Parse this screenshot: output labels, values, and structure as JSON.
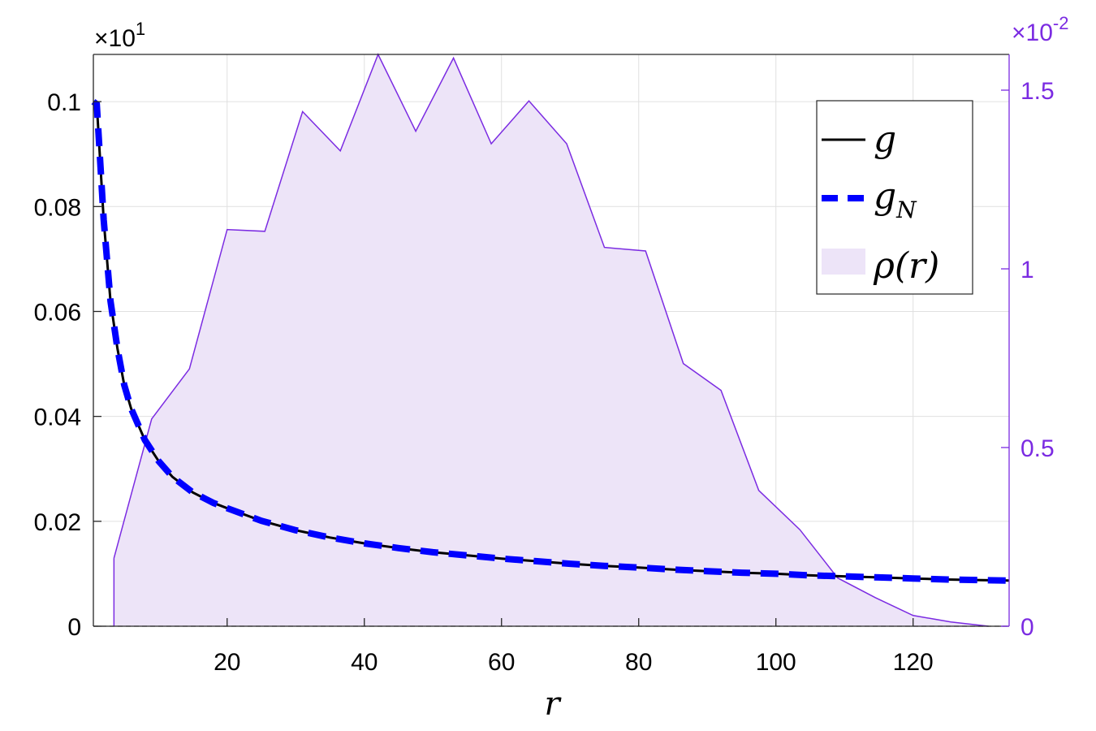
{
  "chart_data": {
    "type": "line",
    "xlabel": "r",
    "ylabel": "",
    "ylabel_right": "",
    "xlim": [
      0.5,
      134
    ],
    "ylim_left": [
      0,
      0.109
    ],
    "ylim_right": [
      0,
      1.6
    ],
    "left_axis_multiplier": "×10",
    "left_axis_exponent": "1",
    "right_axis_multiplier": "×10",
    "right_axis_exponent": "-2",
    "x_ticks": [
      20,
      40,
      60,
      80,
      100,
      120
    ],
    "x_tick_labels": [
      "20",
      "40",
      "60",
      "80",
      "100",
      "120"
    ],
    "y_ticks_left": [
      0,
      0.02,
      0.04,
      0.06,
      0.08,
      0.1
    ],
    "y_tick_labels_left": [
      "0",
      "0.02",
      "0.04",
      "0.06",
      "0.08",
      "0.1"
    ],
    "y_ticks_right": [
      0,
      0.5,
      1,
      1.5
    ],
    "y_tick_labels_right": [
      "0",
      "0.5",
      "1",
      "1.5"
    ],
    "grid": true,
    "legend_position": "top-right",
    "colors": {
      "g": "#000000",
      "gN": "#0000ff",
      "rho_line": "#7b2be2",
      "rho_fill": "#ede4f8",
      "right_axis": "#7b2be2",
      "grid": "#e0e0e0",
      "axes": "#262626"
    },
    "series": [
      {
        "name": "g",
        "axis": "left",
        "style": "solid",
        "x": [
          0.5,
          1,
          2,
          3,
          4,
          5,
          6,
          8,
          10,
          12,
          15,
          18,
          20,
          25,
          30,
          35,
          40,
          45,
          50,
          55,
          60,
          65,
          70,
          75,
          80,
          85,
          90,
          95,
          100,
          105,
          110,
          115,
          120,
          125,
          130,
          134
        ],
        "y": [
          0.1,
          0.0995,
          0.0775,
          0.062,
          0.053,
          0.046,
          0.0415,
          0.0355,
          0.0315,
          0.0285,
          0.0255,
          0.0235,
          0.0225,
          0.0201,
          0.0183,
          0.0169,
          0.0158,
          0.0149,
          0.0141,
          0.0135,
          0.0129,
          0.0124,
          0.0119,
          0.0115,
          0.0112,
          0.0108,
          0.0105,
          0.0102,
          0.01,
          0.0097,
          0.0095,
          0.0093,
          0.0091,
          0.0089,
          0.0088,
          0.0087
        ]
      },
      {
        "name": "g_N",
        "axis": "left",
        "style": "dashed",
        "x": [
          0.5,
          1,
          2,
          3,
          4,
          5,
          6,
          8,
          10,
          12,
          15,
          18,
          20,
          25,
          30,
          35,
          40,
          45,
          50,
          55,
          60,
          65,
          70,
          75,
          80,
          85,
          90,
          95,
          100,
          105,
          110,
          115,
          120,
          125,
          130,
          134
        ],
        "y": [
          0.1,
          0.0995,
          0.0775,
          0.062,
          0.053,
          0.046,
          0.0415,
          0.0355,
          0.0315,
          0.0285,
          0.0255,
          0.0235,
          0.0225,
          0.0201,
          0.0183,
          0.0169,
          0.0158,
          0.0149,
          0.0141,
          0.0135,
          0.0129,
          0.0124,
          0.0119,
          0.0115,
          0.0112,
          0.0108,
          0.0105,
          0.0102,
          0.01,
          0.0097,
          0.0095,
          0.0093,
          0.0091,
          0.0089,
          0.0088,
          0.0087
        ]
      },
      {
        "name": "ρ(r)",
        "axis": "right",
        "style": "area",
        "x": [
          3.5,
          9,
          14.5,
          20,
          25.5,
          31,
          36.5,
          42,
          47.5,
          53,
          58.5,
          64,
          69.5,
          75,
          81,
          86.5,
          92,
          97.5,
          103.5,
          109,
          114.5,
          120,
          125.5,
          131
        ],
        "y": [
          0.19,
          0.58,
          0.72,
          1.11,
          1.105,
          1.44,
          1.33,
          1.6,
          1.385,
          1.59,
          1.35,
          1.47,
          1.35,
          1.06,
          1.05,
          0.735,
          0.66,
          0.38,
          0.27,
          0.135,
          0.08,
          0.03,
          0.012,
          0.0
        ]
      }
    ],
    "legend": [
      {
        "label": "g",
        "sub": ""
      },
      {
        "label": "g",
        "sub": "N"
      },
      {
        "label": "ρ(r)",
        "sub": ""
      }
    ]
  }
}
